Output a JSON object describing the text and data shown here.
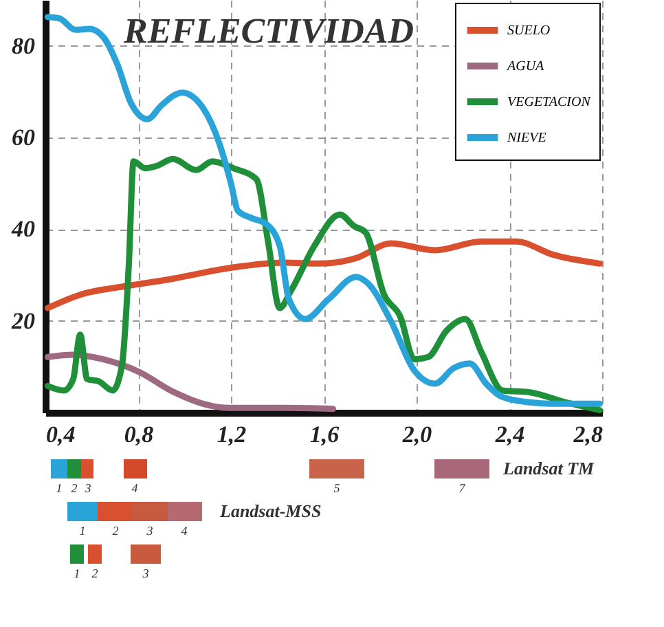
{
  "chart_data": {
    "type": "line",
    "title": "REFLECTIVIDAD",
    "xlim": [
      0.4,
      2.8
    ],
    "ylim": [
      0,
      90
    ],
    "xticks": [
      {
        "value": 0.4,
        "label": "0,4"
      },
      {
        "value": 0.8,
        "label": "0,8"
      },
      {
        "value": 1.2,
        "label": "1,2"
      },
      {
        "value": 1.6,
        "label": "1,6"
      },
      {
        "value": 2.0,
        "label": "2,0"
      },
      {
        "value": 2.4,
        "label": "2,4"
      },
      {
        "value": 2.8,
        "label": "2,8"
      }
    ],
    "yticks": [
      20,
      40,
      60,
      80
    ],
    "grid": true,
    "legend": "top right",
    "line_style": "solid",
    "marker": "none",
    "annotations": [
      "1",
      "2",
      "3",
      "4",
      "5",
      "7",
      "Landsat TM",
      "1",
      "2",
      "3",
      "4",
      "Landsat-MSS",
      "1",
      "2",
      "3"
    ],
    "series": [
      {
        "name": "SUELO",
        "color": "#d9502e",
        "x": [
          0.41,
          0.55,
          0.75,
          0.94,
          1.19,
          1.43,
          1.58,
          1.74,
          1.89,
          2.08,
          2.28,
          2.43,
          2.59,
          2.79
        ],
        "values": [
          22.8,
          25.7,
          27.6,
          29.1,
          31.5,
          32.7,
          32.5,
          33.7,
          36.9,
          35.4,
          37.3,
          37.3,
          34.4,
          32.5
        ]
      },
      {
        "name": "AGUA",
        "color": "#9e6a82",
        "x": [
          0.41,
          0.52,
          0.65,
          0.81,
          0.94,
          1.08,
          1.19,
          1.43,
          1.64
        ],
        "values": [
          12.1,
          12.6,
          11.6,
          8.7,
          4.8,
          1.9,
          1.0,
          1.0,
          0.8
        ]
      },
      {
        "name": "VEGETACION",
        "color": "#1f8f3a",
        "x": [
          0.41,
          0.48,
          0.52,
          0.55,
          0.58,
          0.63,
          0.69,
          0.73,
          0.76,
          0.78,
          0.83,
          0.88,
          0.95,
          1.05,
          1.12,
          1.21,
          1.31,
          1.36,
          1.41,
          1.46,
          1.56,
          1.67,
          1.73,
          1.78,
          1.86,
          1.93,
          1.99,
          2.05,
          2.13,
          2.21,
          2.28,
          2.37,
          2.49,
          2.63,
          2.79
        ],
        "values": [
          5.8,
          4.8,
          7.3,
          17,
          7.3,
          6.8,
          4.8,
          10.2,
          32.5,
          54.8,
          53.3,
          53.8,
          55.3,
          52.9,
          54.8,
          53.3,
          50.9,
          37.3,
          22.8,
          26.7,
          36.4,
          43.2,
          40.7,
          39.3,
          25.7,
          20.9,
          11.6,
          12.1,
          17.9,
          20.4,
          13.1,
          4.8,
          4.4,
          2.4,
          0.5
        ]
      },
      {
        "name": "NIEVE",
        "color": "#2aa3d8",
        "x": [
          0.41,
          0.46,
          0.53,
          0.59,
          0.65,
          0.71,
          0.77,
          0.84,
          0.9,
          0.99,
          1.08,
          1.15,
          1.2,
          1.23,
          1.29,
          1.35,
          1.41,
          1.45,
          1.52,
          1.62,
          1.74,
          1.79,
          1.89,
          1.99,
          2.08,
          2.16,
          2.23,
          2.3,
          2.37,
          2.49,
          2.58,
          2.79
        ],
        "values": [
          86.3,
          86,
          83.5,
          83.7,
          81.9,
          76,
          67.4,
          64,
          67,
          69.8,
          66.4,
          58.7,
          50,
          44,
          42.4,
          41.2,
          36.4,
          24.7,
          20.4,
          24.7,
          29.6,
          28.2,
          19.9,
          9.2,
          6.3,
          9.7,
          10.7,
          6.3,
          3.4,
          2.2,
          1.9,
          1.9
        ]
      }
    ]
  }
}
